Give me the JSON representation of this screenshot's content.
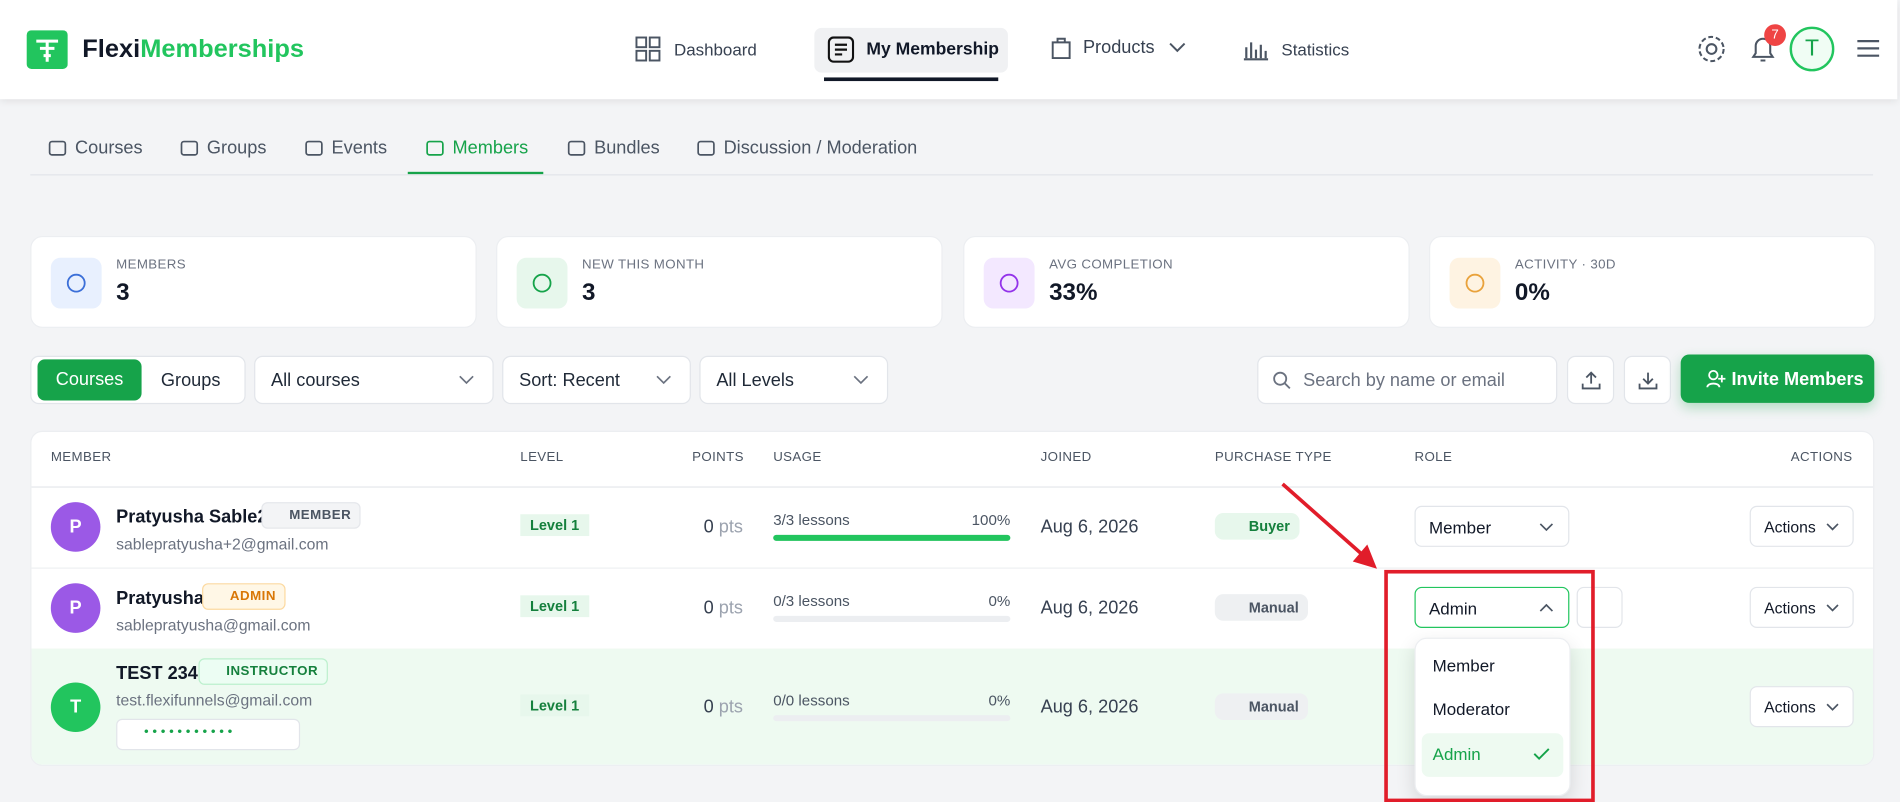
{
  "header": {
    "brand_a": "Flexi",
    "brand_b": "Memberships",
    "nav": [
      "Dashboard",
      "My Membership",
      "Products",
      "Statistics"
    ],
    "notifications": "7",
    "avatar": "T"
  },
  "tabs": [
    "Courses",
    "Groups",
    "Events",
    "Members",
    "Bundles",
    "Discussion / Moderation"
  ],
  "stats": [
    {
      "label": "MEMBERS",
      "value": "3"
    },
    {
      "label": "NEW THIS MONTH",
      "value": "3"
    },
    {
      "label": "AVG COMPLETION",
      "value": "33%"
    },
    {
      "label": "ACTIVITY · 30D",
      "value": "0%"
    }
  ],
  "toolbar": {
    "toggle": [
      "Courses",
      "Groups"
    ],
    "filters": [
      "All courses",
      "Sort: Recent",
      "All Levels"
    ],
    "search": "Search by name or email",
    "invite": "Invite Members"
  },
  "table": {
    "columns": [
      "MEMBER",
      "LEVEL",
      "POINTS",
      "USAGE",
      "JOINED",
      "PURCHASE TYPE",
      "ROLE",
      "ACTIONS"
    ],
    "rows": [
      {
        "initial": "P",
        "name": "Pratyusha Sable2",
        "badge": "MEMBER",
        "email": "sablepratyusha+2@gmail.com",
        "level": "Level 1",
        "points": "0",
        "unit": "pts",
        "usage": "3/3 lessons",
        "pct": "100%",
        "joined": "Aug 6, 2026",
        "purchase": "Buyer",
        "role": "Member",
        "actions": "Actions"
      },
      {
        "initial": "P",
        "name": "Pratyusha",
        "badge": "ADMIN",
        "email": "sablepratyusha@gmail.com",
        "level": "Level 1",
        "points": "0",
        "unit": "pts",
        "usage": "0/3 lessons",
        "pct": "0%",
        "joined": "Aug 6, 2026",
        "purchase": "Manual",
        "role": "Admin",
        "actions": "Actions"
      },
      {
        "initial": "T",
        "name": "TEST 234",
        "badge": "INSTRUCTOR",
        "email": "test.flexifunnels@gmail.com",
        "password": "• • • • • • • • • • •",
        "level": "Level 1",
        "points": "0",
        "unit": "pts",
        "usage": "0/0 lessons",
        "pct": "0%",
        "joined": "Aug 6, 2026",
        "purchase": "Manual",
        "actions": "Actions"
      }
    ]
  },
  "role_menu": [
    "Member",
    "Moderator",
    "Admin"
  ]
}
